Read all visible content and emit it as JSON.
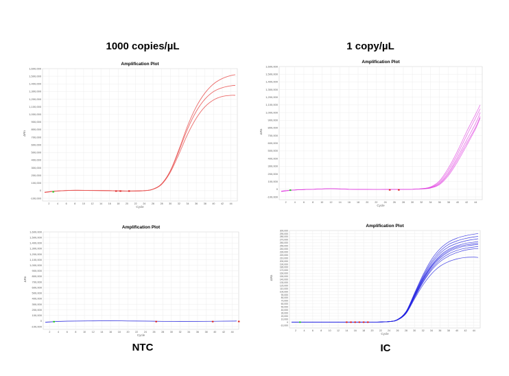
{
  "labels": {
    "top_left": "1000 copies/µL",
    "top_right": "1 copy/µL",
    "bottom_left": "NTC",
    "bottom_right": "IC"
  },
  "chart_data": [
    {
      "type": "line",
      "title": "Amplification Plot",
      "xlabel": "Cycle",
      "ylabel": "ΔRn",
      "xlim": [
        1,
        45
      ],
      "ylim": [
        -100000,
        1600000
      ],
      "ytick_step": 100000,
      "xticks": [
        2,
        4,
        6,
        8,
        10,
        12,
        14,
        16,
        18,
        20,
        22,
        24,
        26,
        28,
        30,
        32,
        34,
        36,
        38,
        40,
        42,
        44
      ],
      "grid": true,
      "color": "#e8504f",
      "x": [
        1,
        4,
        8,
        12,
        16,
        20,
        24,
        26,
        28,
        30,
        32,
        34,
        36,
        38,
        40,
        42,
        44,
        45
      ],
      "series": [
        {
          "values": [
            -25000,
            -5000,
            5000,
            3000,
            0,
            -5000,
            0,
            20000,
            90000,
            260000,
            540000,
            850000,
            1100000,
            1280000,
            1400000,
            1470000,
            1510000,
            1520000
          ]
        },
        {
          "values": [
            -22000,
            -4000,
            5000,
            3000,
            0,
            -5000,
            0,
            19000,
            88000,
            255000,
            520000,
            810000,
            1040000,
            1200000,
            1300000,
            1350000,
            1375000,
            1380000
          ]
        },
        {
          "values": [
            -20000,
            -4000,
            4000,
            2000,
            0,
            -5000,
            0,
            18000,
            82000,
            240000,
            480000,
            740000,
            950000,
            1100000,
            1190000,
            1235000,
            1250000,
            1250000
          ]
        }
      ],
      "markers": [
        {
          "x": 3,
          "y": -15000,
          "color": "#22cc22"
        },
        {
          "x": 17.5,
          "y": -5000,
          "color": "#dd2222"
        },
        {
          "x": 18.5,
          "y": -5000,
          "color": "#dd2222"
        },
        {
          "x": 20.5,
          "y": -5000,
          "color": "#dd2222"
        }
      ]
    },
    {
      "type": "line",
      "title": "Amplification Plot",
      "xlabel": "Cycle",
      "ylabel": "ΔRn",
      "xlim": [
        1,
        45
      ],
      "ylim": [
        -100000,
        1600000
      ],
      "ytick_step": 100000,
      "xticks": [
        2,
        4,
        6,
        8,
        10,
        12,
        14,
        16,
        18,
        20,
        22,
        24,
        26,
        28,
        30,
        32,
        34,
        36,
        38,
        40,
        42,
        44
      ],
      "grid": true,
      "color": "#e040e0",
      "x": [
        1,
        4,
        8,
        12,
        16,
        20,
        24,
        28,
        30,
        32,
        34,
        36,
        38,
        40,
        42,
        44,
        45
      ],
      "series": [
        {
          "values": [
            -30000,
            -10000,
            0,
            8000,
            0,
            -3000,
            -3000,
            -2000,
            0,
            8000,
            30000,
            110000,
            280000,
            500000,
            750000,
            980000,
            1100000
          ]
        },
        {
          "values": [
            -28000,
            -10000,
            0,
            8000,
            0,
            -3000,
            -3000,
            -2000,
            0,
            7000,
            25000,
            95000,
            250000,
            460000,
            700000,
            930000,
            1050000
          ]
        },
        {
          "values": [
            -26000,
            -9000,
            0,
            7000,
            0,
            -3000,
            -3000,
            -2000,
            0,
            6000,
            20000,
            80000,
            220000,
            420000,
            640000,
            860000,
            1000000
          ]
        },
        {
          "values": [
            -25000,
            -9000,
            0,
            7000,
            0,
            -3000,
            -3000,
            -2000,
            0,
            5000,
            18000,
            70000,
            200000,
            390000,
            600000,
            810000,
            950000
          ]
        },
        {
          "values": [
            -24000,
            -8000,
            0,
            6000,
            0,
            -3000,
            -3000,
            -2000,
            0,
            4000,
            15000,
            60000,
            180000,
            360000,
            570000,
            790000,
            930000
          ]
        }
      ],
      "markers": [
        {
          "x": 3,
          "y": -12000,
          "color": "#22cc22"
        },
        {
          "x": 25,
          "y": -8000,
          "color": "#dd2222"
        },
        {
          "x": 27,
          "y": -8000,
          "color": "#dd2222"
        }
      ]
    },
    {
      "type": "line",
      "title": "Amplification Plot",
      "xlabel": "Cycle",
      "ylabel": "ΔRn",
      "xlim": [
        1,
        45
      ],
      "ylim": [
        -100000,
        1600000
      ],
      "ytick_step": 100000,
      "xticks": [
        2,
        4,
        6,
        8,
        10,
        12,
        14,
        16,
        18,
        20,
        22,
        24,
        26,
        28,
        30,
        32,
        34,
        36,
        38,
        40,
        42,
        44
      ],
      "grid": true,
      "color": "#3a3ae0",
      "x": [
        1,
        4,
        8,
        12,
        16,
        20,
        24,
        28,
        32,
        36,
        40,
        44,
        45
      ],
      "series": [
        {
          "values": [
            -25000,
            -8000,
            0,
            3000,
            5000,
            2000,
            0,
            -5000,
            -8000,
            -6000,
            -4000,
            0,
            2000
          ]
        },
        {
          "values": [
            -20000,
            -6000,
            0,
            2000,
            4000,
            1000,
            -2000,
            -7000,
            -9000,
            -7000,
            -5000,
            -2000,
            0
          ]
        }
      ],
      "markers": [
        {
          "x": 3,
          "y": -12000,
          "color": "#22cc22"
        },
        {
          "x": 26.5,
          "y": -10000,
          "color": "#dd2222"
        },
        {
          "x": 39.5,
          "y": -10000,
          "color": "#dd2222"
        },
        {
          "x": 45.5,
          "y": -8000,
          "color": "#dd2222"
        }
      ]
    },
    {
      "type": "line",
      "title": "Amplification Plot",
      "xlabel": "Cycle",
      "ylabel": "ΔRn",
      "xlim": [
        1,
        45
      ],
      "ylim": [
        -10000,
        300000
      ],
      "ytick_step": 10000,
      "xticks": [
        2,
        4,
        6,
        8,
        10,
        12,
        14,
        16,
        18,
        20,
        22,
        24,
        26,
        28,
        30,
        32,
        34,
        36,
        38,
        40,
        42,
        44
      ],
      "grid": true,
      "color": "#2020e0",
      "x": [
        1,
        4,
        8,
        12,
        16,
        20,
        24,
        26,
        28,
        30,
        32,
        34,
        36,
        38,
        40,
        42,
        44,
        45
      ],
      "series": [
        {
          "values": [
            0,
            0,
            0,
            0,
            0,
            0,
            2000,
            9000,
            35000,
            95000,
            155000,
            205000,
            240000,
            262000,
            275000,
            283000,
            288000,
            290000
          ]
        },
        {
          "values": [
            0,
            0,
            0,
            0,
            0,
            0,
            2000,
            9000,
            34000,
            92000,
            150000,
            198000,
            232000,
            254000,
            266000,
            274000,
            279000,
            281000
          ]
        },
        {
          "values": [
            0,
            0,
            0,
            0,
            0,
            0,
            2000,
            8500,
            33000,
            90000,
            146000,
            192000,
            225000,
            246000,
            258000,
            266000,
            271000,
            273000
          ]
        },
        {
          "values": [
            0,
            0,
            0,
            0,
            0,
            0,
            2000,
            8500,
            33000,
            88000,
            142000,
            186000,
            218000,
            238000,
            250000,
            258000,
            262000,
            264000
          ]
        },
        {
          "values": [
            0,
            0,
            0,
            0,
            0,
            0,
            2000,
            8000,
            32000,
            86000,
            140000,
            183000,
            214000,
            234000,
            246000,
            253000,
            257000,
            258000
          ]
        },
        {
          "values": [
            0,
            0,
            0,
            0,
            0,
            0,
            2000,
            8000,
            31000,
            84000,
            137000,
            180000,
            210000,
            230000,
            242000,
            249000,
            253000,
            254000
          ]
        },
        {
          "values": [
            0,
            0,
            0,
            0,
            0,
            0,
            1800,
            7500,
            30000,
            82000,
            133000,
            175000,
            204000,
            223000,
            235000,
            242000,
            246000,
            247000
          ]
        },
        {
          "values": [
            0,
            0,
            0,
            0,
            0,
            0,
            1800,
            7500,
            29000,
            80000,
            130000,
            170000,
            198000,
            216000,
            228000,
            236000,
            240000,
            241000
          ]
        },
        {
          "values": [
            0,
            0,
            0,
            0,
            0,
            0,
            1600,
            7000,
            28000,
            76000,
            122000,
            158000,
            183000,
            198000,
            207000,
            212000,
            213000,
            212000
          ]
        }
      ],
      "markers": [
        {
          "x": 3,
          "y": 0,
          "color": "#22cc22"
        },
        {
          "x": 14,
          "y": 0,
          "color": "#dd2222"
        },
        {
          "x": 15,
          "y": 0,
          "color": "#dd2222"
        },
        {
          "x": 16,
          "y": 0,
          "color": "#dd2222"
        },
        {
          "x": 17,
          "y": 0,
          "color": "#dd2222"
        },
        {
          "x": 18,
          "y": 0,
          "color": "#dd2222"
        },
        {
          "x": 19,
          "y": 0,
          "color": "#dd2222"
        }
      ]
    }
  ]
}
